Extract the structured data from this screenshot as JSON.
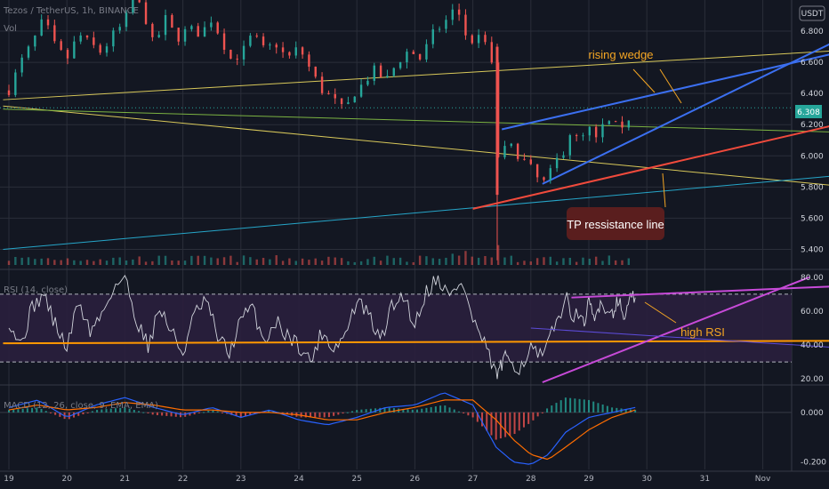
{
  "colors": {
    "background": "#131722",
    "grid": "#2a2e39",
    "up": "#26a69a",
    "down": "#ef5350",
    "annotation": "#f5a623",
    "yellow_line": "#d8c85a",
    "blue_line": "#3b6ff0",
    "red_line": "#f04a3c",
    "green_line": "#7cb342",
    "cyan_line": "#26a6c9",
    "rsi_line": "#d1d4dc",
    "rsi_band": "#2a1f3d",
    "magenta_line": "#c74ad8",
    "purple_line": "#5c4bd8",
    "orange_line": "#ff9800",
    "macd_line": "#2962ff",
    "signal_line": "#ff6d00"
  },
  "header": {
    "price": "Tezos / TetherUS, 1h, BINANCE",
    "volume": "Vol",
    "rsi": "RSI (14, close)",
    "macd": "MACD (12, 26, close, 9, EMA, EMA)"
  },
  "currency_badge": "USDT",
  "last_price_label": "6.308",
  "x_labels": [
    "19",
    "20",
    "21",
    "22",
    "23",
    "24",
    "25",
    "26",
    "27",
    "28",
    "29",
    "30",
    "31",
    "Nov"
  ],
  "annotations": {
    "rising_wedge": "rising wedge",
    "tp_line": "TP ressistance line",
    "high_rsi": "high RSI"
  },
  "chart_data": [
    {
      "type": "candlestick",
      "title": "Tezos / TetherUS, 1h, BINANCE",
      "x_range": [
        "19",
        "Nov"
      ],
      "ylim": [
        5.3,
        7.0
      ],
      "y_ticks": [
        5.4,
        5.6,
        5.8,
        6.0,
        6.2,
        6.4,
        6.6,
        6.8
      ],
      "y_tick_labels": [
        "5.400",
        "5.600",
        "5.800",
        "6.000",
        "6.200",
        "6.400",
        "6.600",
        "6.800"
      ],
      "last_price": 6.308,
      "grid": true,
      "close_path": [
        [
          19.0,
          6.42
        ],
        [
          19.2,
          6.6
        ],
        [
          19.4,
          6.72
        ],
        [
          19.6,
          6.88
        ],
        [
          19.8,
          6.7
        ],
        [
          20.0,
          6.62
        ],
        [
          20.2,
          6.78
        ],
        [
          20.4,
          6.72
        ],
        [
          20.6,
          6.66
        ],
        [
          20.8,
          6.78
        ],
        [
          21.0,
          6.85
        ],
        [
          21.1,
          7.02
        ],
        [
          21.3,
          6.95
        ],
        [
          21.5,
          6.7
        ],
        [
          21.7,
          6.88
        ],
        [
          21.9,
          6.75
        ],
        [
          22.1,
          6.82
        ],
        [
          22.3,
          6.78
        ],
        [
          22.5,
          6.88
        ],
        [
          22.7,
          6.72
        ],
        [
          22.8,
          6.62
        ],
        [
          23.0,
          6.65
        ],
        [
          23.2,
          6.78
        ],
        [
          23.4,
          6.68
        ],
        [
          23.6,
          6.72
        ],
        [
          23.8,
          6.62
        ],
        [
          24.0,
          6.7
        ],
        [
          24.2,
          6.55
        ],
        [
          24.4,
          6.42
        ],
        [
          24.6,
          6.36
        ],
        [
          24.8,
          6.28
        ],
        [
          24.9,
          6.38
        ],
        [
          25.1,
          6.46
        ],
        [
          25.3,
          6.55
        ],
        [
          25.5,
          6.48
        ],
        [
          25.7,
          6.6
        ],
        [
          25.9,
          6.68
        ],
        [
          26.1,
          6.62
        ],
        [
          26.3,
          6.78
        ],
        [
          26.5,
          6.85
        ],
        [
          26.7,
          6.95
        ],
        [
          26.8,
          6.88
        ],
        [
          26.9,
          6.75
        ],
        [
          27.0,
          6.7
        ],
        [
          27.1,
          6.8
        ],
        [
          27.2,
          6.72
        ],
        [
          27.3,
          6.7
        ],
        [
          27.4,
          6.28
        ],
        [
          27.45,
          5.9
        ],
        [
          27.5,
          6.0
        ],
        [
          27.6,
          6.08
        ],
        [
          27.8,
          6.0
        ],
        [
          27.9,
          5.96
        ],
        [
          28.0,
          5.92
        ],
        [
          28.1,
          5.86
        ],
        [
          28.2,
          5.82
        ],
        [
          28.3,
          5.86
        ],
        [
          28.4,
          5.95
        ],
        [
          28.6,
          6.05
        ],
        [
          28.7,
          6.18
        ],
        [
          28.8,
          6.1
        ],
        [
          28.9,
          6.12
        ],
        [
          29.0,
          6.18
        ],
        [
          29.1,
          6.08
        ],
        [
          29.2,
          6.16
        ],
        [
          29.3,
          6.24
        ],
        [
          29.4,
          6.18
        ],
        [
          29.5,
          6.2
        ],
        [
          29.6,
          6.14
        ],
        [
          29.7,
          6.26
        ],
        [
          29.8,
          6.31
        ]
      ],
      "trendlines": [
        {
          "from": [
            18.9,
            6.36
          ],
          "to": [
            33.5,
            6.68
          ],
          "color": "yellow_line"
        },
        {
          "from": [
            18.9,
            6.32
          ],
          "to": [
            33.5,
            5.8
          ],
          "color": "yellow_line"
        },
        {
          "from": [
            18.9,
            6.3
          ],
          "to": [
            33.5,
            6.15
          ],
          "color": "green_line"
        },
        {
          "from": [
            18.9,
            5.4
          ],
          "to": [
            33.5,
            5.88
          ],
          "color": "cyan_line"
        },
        {
          "from": [
            27.5,
            6.17
          ],
          "to": [
            33.5,
            6.68
          ],
          "color": "blue_line"
        },
        {
          "from": [
            28.2,
            5.82
          ],
          "to": [
            33.5,
            6.78
          ],
          "color": "blue_line"
        },
        {
          "from": [
            27.0,
            5.66
          ],
          "to": [
            33.5,
            6.22
          ],
          "color": "red_line"
        }
      ]
    },
    {
      "type": "bar",
      "title": "Vol",
      "note": "volume histogram below price"
    },
    {
      "type": "line",
      "title": "RSI (14, close)",
      "ylim": [
        18,
        82
      ],
      "y_ticks": [
        20,
        40,
        60,
        80
      ],
      "y_tick_labels": [
        "20.00",
        "40.00",
        "60.00",
        "80.00"
      ],
      "bands": [
        30,
        70
      ],
      "values": [
        [
          19.0,
          55
        ],
        [
          19.2,
          40
        ],
        [
          19.4,
          62
        ],
        [
          19.6,
          70
        ],
        [
          19.8,
          52
        ],
        [
          20.0,
          38
        ],
        [
          20.2,
          66
        ],
        [
          20.4,
          48
        ],
        [
          20.6,
          58
        ],
        [
          20.8,
          74
        ],
        [
          21.0,
          80
        ],
        [
          21.2,
          55
        ],
        [
          21.4,
          40
        ],
        [
          21.6,
          62
        ],
        [
          21.8,
          48
        ],
        [
          22.0,
          35
        ],
        [
          22.2,
          58
        ],
        [
          22.4,
          66
        ],
        [
          22.6,
          45
        ],
        [
          22.8,
          35
        ],
        [
          23.0,
          55
        ],
        [
          23.2,
          62
        ],
        [
          23.4,
          42
        ],
        [
          23.6,
          54
        ],
        [
          23.8,
          46
        ],
        [
          24.0,
          40
        ],
        [
          24.2,
          30
        ],
        [
          24.4,
          48
        ],
        [
          24.6,
          38
        ],
        [
          24.8,
          46
        ],
        [
          25.0,
          66
        ],
        [
          25.2,
          58
        ],
        [
          25.4,
          42
        ],
        [
          25.6,
          62
        ],
        [
          25.8,
          70
        ],
        [
          26.0,
          52
        ],
        [
          26.2,
          72
        ],
        [
          26.4,
          80
        ],
        [
          26.6,
          68
        ],
        [
          26.8,
          78
        ],
        [
          27.0,
          55
        ],
        [
          27.2,
          40
        ],
        [
          27.4,
          22
        ],
        [
          27.5,
          28
        ],
        [
          27.6,
          34
        ],
        [
          27.8,
          26
        ],
        [
          28.0,
          38
        ],
        [
          28.2,
          32
        ],
        [
          28.4,
          50
        ],
        [
          28.6,
          68
        ],
        [
          28.7,
          60
        ],
        [
          28.9,
          52
        ],
        [
          29.0,
          64
        ],
        [
          29.1,
          54
        ],
        [
          29.2,
          66
        ],
        [
          29.4,
          58
        ],
        [
          29.5,
          68
        ],
        [
          29.6,
          56
        ],
        [
          29.7,
          66
        ],
        [
          29.8,
          68
        ]
      ],
      "trendlines": [
        {
          "from": [
            18.9,
            41.0
          ],
          "to": [
            33.5,
            42.5
          ],
          "color": "orange_line"
        },
        {
          "from": [
            28.2,
            18.0
          ],
          "to": [
            32.8,
            80.0
          ],
          "color": "magenta_line"
        },
        {
          "from": [
            28.7,
            68.0
          ],
          "to": [
            33.5,
            75.0
          ],
          "color": "magenta_line"
        },
        {
          "from": [
            28.0,
            50.0
          ],
          "to": [
            33.5,
            38.0
          ],
          "color": "purple_line"
        }
      ]
    },
    {
      "type": "line",
      "title": "MACD (12, 26, close, 9, EMA, EMA)",
      "ylim": [
        -0.23,
        0.1
      ],
      "y_ticks": [
        0.0,
        -0.2
      ],
      "y_tick_labels": [
        "0.000",
        "-0.200"
      ],
      "macd": [
        [
          19.0,
          0.02
        ],
        [
          19.5,
          0.05
        ],
        [
          20.0,
          -0.02
        ],
        [
          20.5,
          0.03
        ],
        [
          21.0,
          0.06
        ],
        [
          21.5,
          0.02
        ],
        [
          22.0,
          -0.01
        ],
        [
          22.5,
          0.02
        ],
        [
          23.0,
          -0.02
        ],
        [
          23.5,
          0.01
        ],
        [
          24.0,
          -0.03
        ],
        [
          24.5,
          -0.05
        ],
        [
          25.0,
          -0.02
        ],
        [
          25.5,
          0.02
        ],
        [
          26.0,
          0.03
        ],
        [
          26.5,
          0.08
        ],
        [
          27.0,
          0.03
        ],
        [
          27.4,
          -0.14
        ],
        [
          27.7,
          -0.2
        ],
        [
          28.0,
          -0.21
        ],
        [
          28.3,
          -0.17
        ],
        [
          28.6,
          -0.08
        ],
        [
          29.0,
          -0.02
        ],
        [
          29.4,
          0.0
        ],
        [
          29.8,
          0.02
        ]
      ],
      "signal": [
        [
          19.0,
          0.01
        ],
        [
          19.5,
          0.03
        ],
        [
          20.0,
          0.01
        ],
        [
          20.5,
          0.02
        ],
        [
          21.0,
          0.04
        ],
        [
          21.5,
          0.03
        ],
        [
          22.0,
          0.01
        ],
        [
          22.5,
          0.01
        ],
        [
          23.0,
          0.0
        ],
        [
          23.5,
          0.0
        ],
        [
          24.0,
          -0.01
        ],
        [
          24.5,
          -0.03
        ],
        [
          25.0,
          -0.03
        ],
        [
          25.5,
          0.0
        ],
        [
          26.0,
          0.02
        ],
        [
          26.5,
          0.05
        ],
        [
          27.0,
          0.05
        ],
        [
          27.4,
          -0.03
        ],
        [
          27.7,
          -0.11
        ],
        [
          28.0,
          -0.17
        ],
        [
          28.3,
          -0.19
        ],
        [
          28.6,
          -0.14
        ],
        [
          29.0,
          -0.07
        ],
        [
          29.4,
          -0.02
        ],
        [
          29.8,
          0.01
        ]
      ]
    }
  ]
}
